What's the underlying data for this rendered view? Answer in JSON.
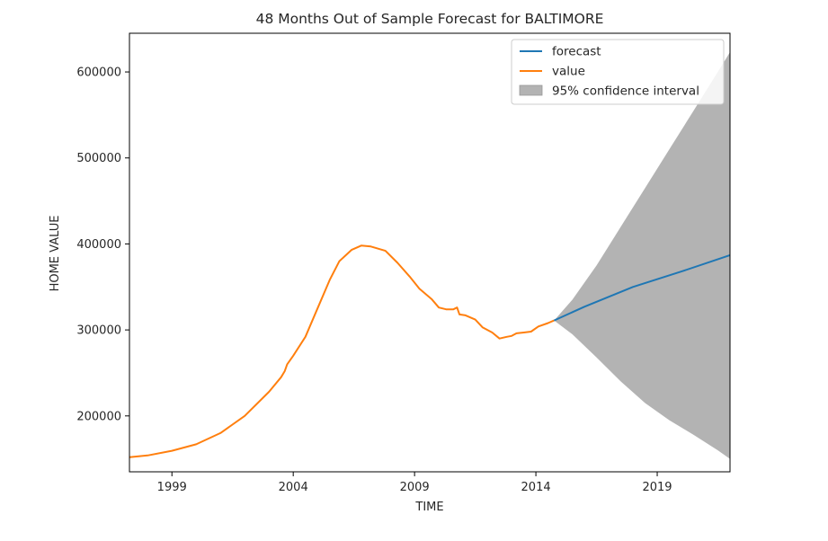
{
  "chart_data": {
    "type": "line",
    "title": "48 Months Out of Sample Forecast for BALTIMORE",
    "xlabel": "TIME",
    "ylabel": "HOME VALUE",
    "xlim": [
      1997.25,
      2022.0
    ],
    "ylim": [
      135000,
      645000
    ],
    "x_ticks": [
      1999,
      2004,
      2009,
      2014,
      2019
    ],
    "y_ticks": [
      200000,
      300000,
      400000,
      500000,
      600000
    ],
    "legend_position": "top-right",
    "grid": false,
    "legend": [
      {
        "label": "forecast",
        "kind": "line",
        "color": "#1f77b4"
      },
      {
        "label": "value",
        "kind": "line",
        "color": "#ff7f0e"
      },
      {
        "label": "95% confidence interval",
        "kind": "band",
        "color": "#b3b3b3"
      }
    ],
    "series": [
      {
        "name": "value",
        "color": "#ff7f0e",
        "points": [
          [
            1997.25,
            152000
          ],
          [
            1998.0,
            154000
          ],
          [
            1999.0,
            159500
          ],
          [
            2000.0,
            167000
          ],
          [
            2001.0,
            180000
          ],
          [
            2002.0,
            200000
          ],
          [
            2003.0,
            228000
          ],
          [
            2003.5,
            245000
          ],
          [
            2003.65,
            252000
          ],
          [
            2003.75,
            260000
          ],
          [
            2004.0,
            270000
          ],
          [
            2004.5,
            292000
          ],
          [
            2005.0,
            325000
          ],
          [
            2005.5,
            358000
          ],
          [
            2005.9,
            380000
          ],
          [
            2006.4,
            393000
          ],
          [
            2006.8,
            398000
          ],
          [
            2007.2,
            397000
          ],
          [
            2007.8,
            392000
          ],
          [
            2008.3,
            378000
          ],
          [
            2008.8,
            362000
          ],
          [
            2009.2,
            348000
          ],
          [
            2009.7,
            336000
          ],
          [
            2010.0,
            326000
          ],
          [
            2010.3,
            324000
          ],
          [
            2010.6,
            324000
          ],
          [
            2010.75,
            326000
          ],
          [
            2010.85,
            318000
          ],
          [
            2011.1,
            317000
          ],
          [
            2011.5,
            312000
          ],
          [
            2011.8,
            303000
          ],
          [
            2012.2,
            297000
          ],
          [
            2012.5,
            290000
          ],
          [
            2012.8,
            292000
          ],
          [
            2013.0,
            293000
          ],
          [
            2013.2,
            296000
          ],
          [
            2013.5,
            297000
          ],
          [
            2013.8,
            298000
          ],
          [
            2014.1,
            304000
          ],
          [
            2014.5,
            308000
          ],
          [
            2014.75,
            311000
          ]
        ]
      },
      {
        "name": "forecast",
        "color": "#1f77b4",
        "points": [
          [
            2014.75,
            311000
          ],
          [
            2016.0,
            327000
          ],
          [
            2018.0,
            350000
          ],
          [
            2020.0,
            368000
          ],
          [
            2022.0,
            387000
          ]
        ]
      }
    ],
    "confidence_interval": {
      "label": "95% confidence interval",
      "color": "#b3b3b3",
      "upper": [
        [
          2014.75,
          311000
        ],
        [
          2015.5,
          335000
        ],
        [
          2016.5,
          375000
        ],
        [
          2017.5,
          420000
        ],
        [
          2018.5,
          465000
        ],
        [
          2019.5,
          510000
        ],
        [
          2020.5,
          555000
        ],
        [
          2021.5,
          600000
        ],
        [
          2022.0,
          623000
        ]
      ],
      "lower": [
        [
          2014.75,
          311000
        ],
        [
          2015.5,
          295000
        ],
        [
          2016.5,
          268000
        ],
        [
          2017.5,
          240000
        ],
        [
          2018.5,
          215000
        ],
        [
          2019.5,
          195000
        ],
        [
          2020.5,
          178000
        ],
        [
          2021.5,
          160000
        ],
        [
          2022.0,
          150000
        ]
      ]
    }
  }
}
